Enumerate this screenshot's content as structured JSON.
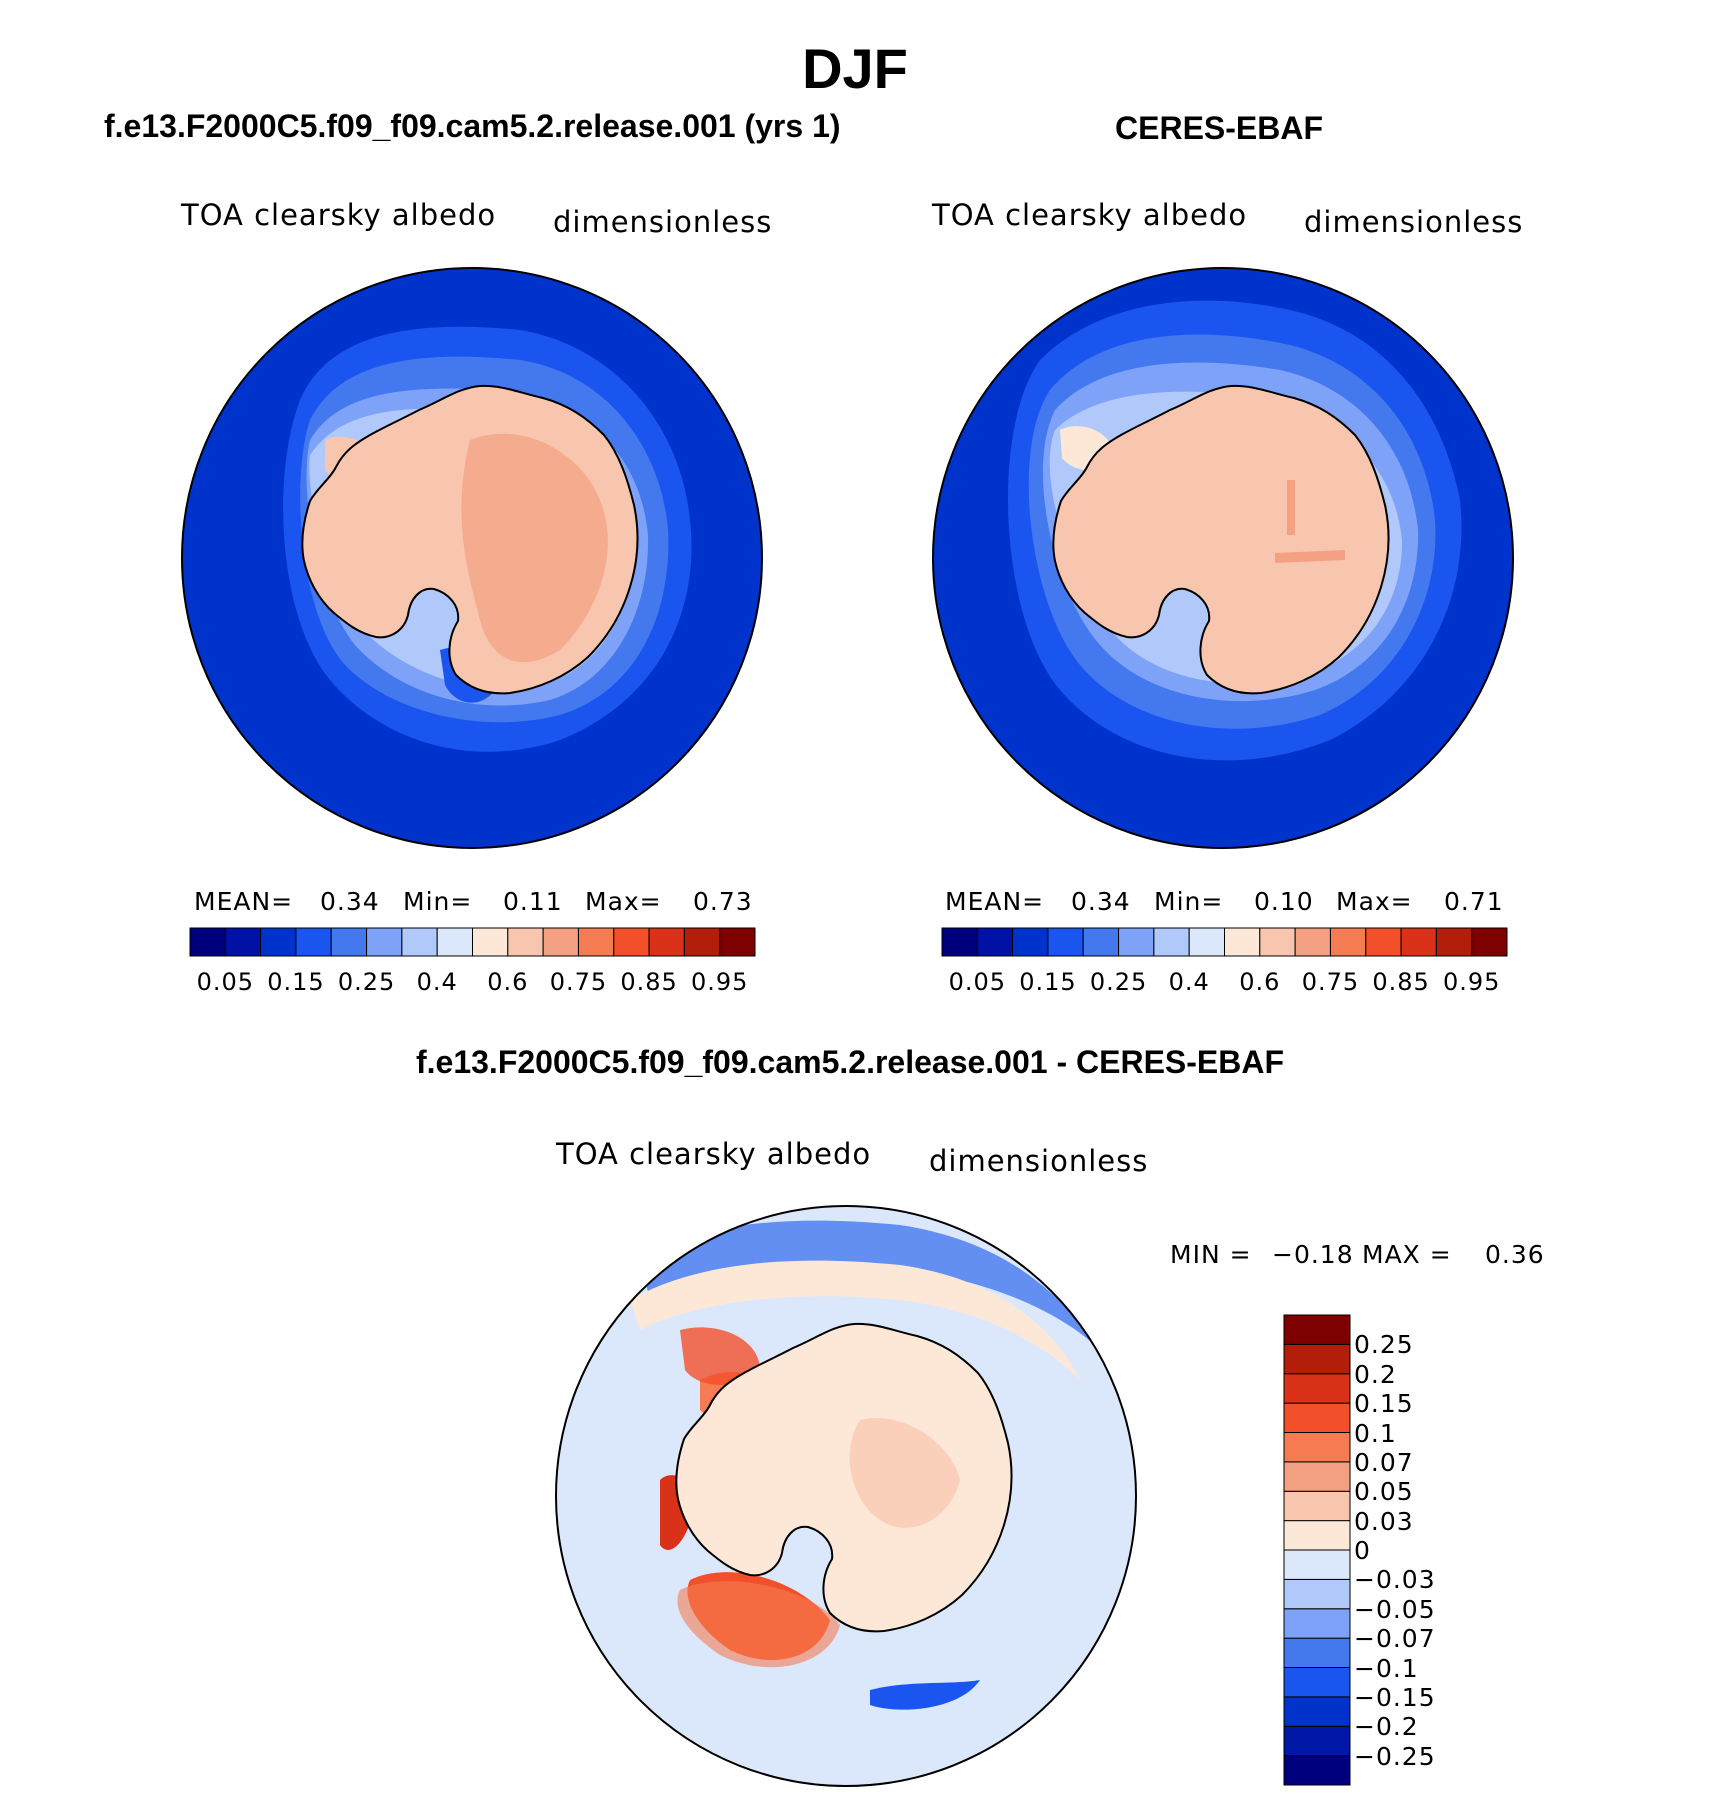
{
  "title": "DJF",
  "panels": [
    {
      "heading": "f.e13.F2000C5.f09_f09.cam5.2.release.001 (yrs 1)",
      "variable": "TOA clearsky albedo",
      "units": "dimensionless",
      "stats": {
        "mean_label": "MEAN=",
        "mean": "0.34",
        "min_label": "Min=",
        "min": "0.11",
        "max_label": "Max=",
        "max": "0.73"
      }
    },
    {
      "heading": "CERES-EBAF",
      "variable": "TOA clearsky albedo",
      "units": "dimensionless",
      "stats": {
        "mean_label": "MEAN=",
        "mean": "0.34",
        "min_label": "Min=",
        "min": "0.10",
        "max_label": "Max=",
        "max": "0.71"
      }
    },
    {
      "heading": "f.e13.F2000C5.f09_f09.cam5.2.release.001 - CERES-EBAF",
      "variable": "TOA clearsky albedo",
      "units": "dimensionless",
      "stats": {
        "min_label": "MIN =",
        "min": "−0.18",
        "max_label": "MAX =",
        "max": "0.36"
      }
    }
  ],
  "colorbars": {
    "abs_colors": [
      "#00007f",
      "#0012a6",
      "#0033cc",
      "#1a55f0",
      "#4478ee",
      "#7da2f7",
      "#b0c8fa",
      "#dbe8fc",
      "#fde8d8",
      "#f8c6ae",
      "#f4a183",
      "#f57b52",
      "#f2502a",
      "#d93218",
      "#b31e0b",
      "#7f0000"
    ],
    "abs_ticks": [
      "0.05",
      "0.15",
      "0.25",
      "0.4",
      "0.6",
      "0.75",
      "0.85",
      "0.95"
    ],
    "diff_colors": [
      "#00007f",
      "#0018a8",
      "#0033cc",
      "#1a55f0",
      "#4478ee",
      "#7da2f7",
      "#b0c8fa",
      "#dbe8fc",
      "#fde8d8",
      "#f8c6ae",
      "#f4a183",
      "#f57b52",
      "#f2502a",
      "#d93218",
      "#b31e0b",
      "#7f0000"
    ],
    "diff_ticks": [
      "0.25",
      "0.2",
      "0.15",
      "0.1",
      "0.07",
      "0.05",
      "0.03",
      "0",
      "−0.03",
      "−0.05",
      "−0.07",
      "−0.1",
      "−0.15",
      "−0.2",
      "−0.25"
    ]
  },
  "chart_data": [
    {
      "type": "heatmap",
      "title": "f.e13.F2000C5.f09_f09.cam5.2.release.001 (yrs 1)",
      "variable": "TOA clearsky albedo",
      "units": "dimensionless",
      "projection": "south polar stereographic",
      "mean": 0.34,
      "min": 0.11,
      "max": 0.73,
      "levels": [
        0.05,
        0.1,
        0.15,
        0.2,
        0.25,
        0.3,
        0.4,
        0.5,
        0.6,
        0.7,
        0.75,
        0.8,
        0.85,
        0.9,
        0.95
      ],
      "regions": {
        "open_ocean": 0.12,
        "sea_ice_margin": 0.3,
        "antarctica_coast": 0.6,
        "antarctica_interior": 0.72
      }
    },
    {
      "type": "heatmap",
      "title": "CERES-EBAF",
      "variable": "TOA clearsky albedo",
      "units": "dimensionless",
      "projection": "south polar stereographic",
      "mean": 0.34,
      "min": 0.1,
      "max": 0.71,
      "levels": [
        0.05,
        0.1,
        0.15,
        0.2,
        0.25,
        0.3,
        0.4,
        0.5,
        0.6,
        0.7,
        0.75,
        0.8,
        0.85,
        0.9,
        0.95
      ],
      "regions": {
        "open_ocean": 0.13,
        "sea_ice_margin": 0.35,
        "antarctica_coast": 0.62,
        "antarctica_interior": 0.68
      }
    },
    {
      "type": "heatmap",
      "title": "f.e13.F2000C5.f09_f09.cam5.2.release.001 - CERES-EBAF",
      "variable": "TOA clearsky albedo",
      "units": "dimensionless",
      "projection": "south polar stereographic",
      "min": -0.18,
      "max": 0.36,
      "levels": [
        -0.25,
        -0.2,
        -0.15,
        -0.1,
        -0.07,
        -0.05,
        -0.03,
        0,
        0.03,
        0.05,
        0.07,
        0.1,
        0.15,
        0.2,
        0.25
      ],
      "regions": {
        "open_ocean": -0.01,
        "antarctica_interior": 0.02,
        "weddell_sea": 0.1,
        "peninsula_coast": 0.2,
        "sea_ice_ring": -0.08
      }
    }
  ]
}
